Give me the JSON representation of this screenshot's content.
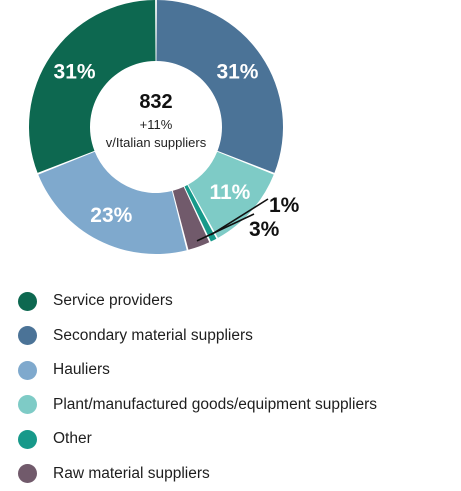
{
  "chart_data": {
    "type": "pie",
    "donut": true,
    "center": {
      "total": "832",
      "change": "+11%",
      "note": "v/Italian suppliers"
    },
    "slices": [
      {
        "name": "Secondary material suppliers",
        "value": 31,
        "label": "31%",
        "color": "#4b7397",
        "label_color": "#ffffff"
      },
      {
        "name": "Plant/manufactured goods/equipment suppliers",
        "value": 11,
        "label": "11%",
        "color": "#7ecbc6",
        "label_color": "#ffffff"
      },
      {
        "name": "Other",
        "value": 1,
        "label": "1%",
        "color": "#17998a",
        "label_color": "#111111"
      },
      {
        "name": "Raw material suppliers",
        "value": 3,
        "label": "3%",
        "color": "#715a6b",
        "label_color": "#111111"
      },
      {
        "name": "Hauliers",
        "value": 23,
        "label": "23%",
        "color": "#7fa9cd",
        "label_color": "#ffffff"
      },
      {
        "name": "Service providers",
        "value": 31,
        "label": "31%",
        "color": "#0d6850",
        "label_color": "#ffffff"
      }
    ]
  },
  "legend": [
    {
      "label": "Service providers",
      "color": "#0d6850"
    },
    {
      "label": "Secondary material suppliers",
      "color": "#4b7397"
    },
    {
      "label": "Hauliers",
      "color": "#7fa9cd"
    },
    {
      "label": "Plant/manufactured goods/equipment suppliers",
      "color": "#7ecbc6"
    },
    {
      "label": "Other",
      "color": "#17998a"
    },
    {
      "label": "Raw material suppliers",
      "color": "#715a6b"
    }
  ]
}
